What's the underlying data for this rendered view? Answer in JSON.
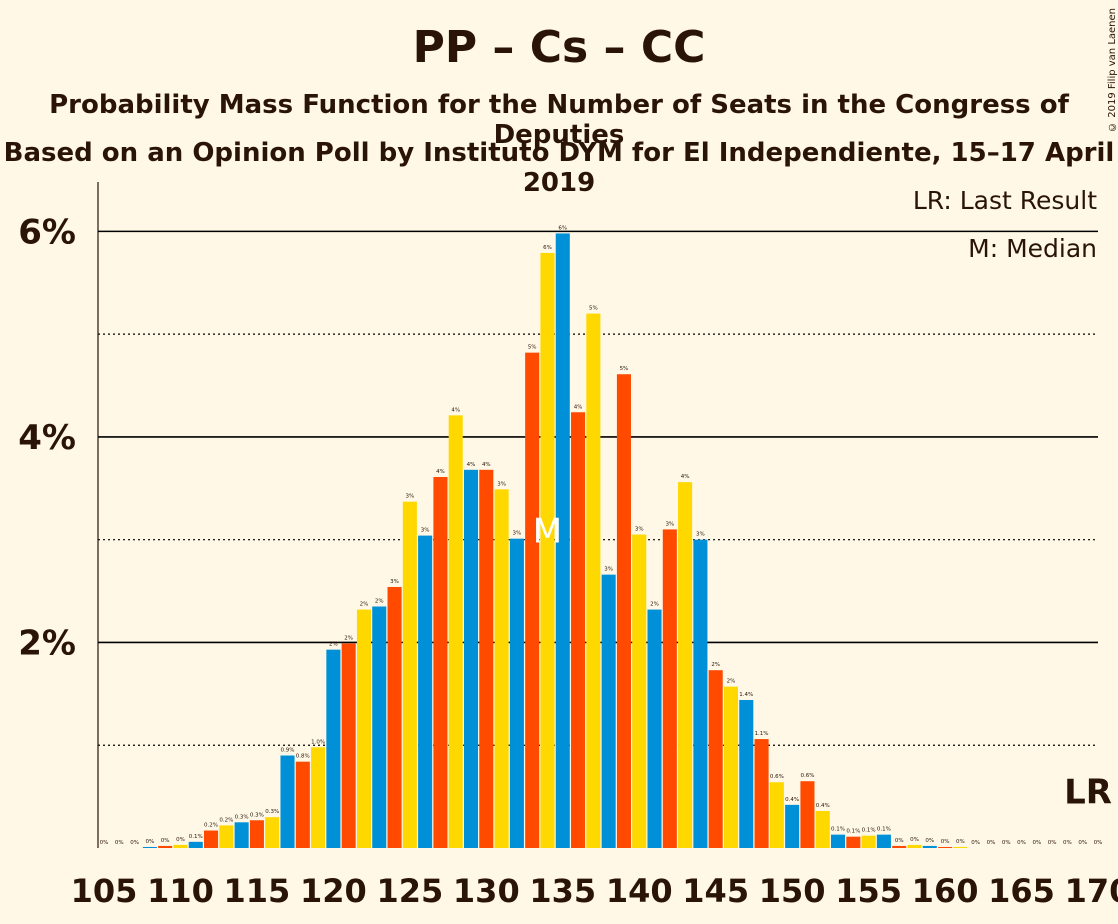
{
  "header": {
    "title": "PP – Cs – CC",
    "subtitle": "Probability Mass Function for the Number of Seats in the Congress of Deputies",
    "source": "Based on an Opinion Poll by Instituto DYM for El Independiente, 15–17 April 2019",
    "copyright": "© 2019 Filip van Laenen"
  },
  "legend": {
    "last_result": "LR: Last Result",
    "median": "M: Median"
  },
  "colors": {
    "background": "#fff8e6",
    "text": "#2a1408",
    "bar_palette": [
      "#0090d8",
      "#ff4a00",
      "#ffd800"
    ]
  },
  "chart_data": {
    "type": "bar",
    "x": [
      105,
      106,
      107,
      108,
      109,
      110,
      111,
      112,
      113,
      114,
      115,
      116,
      117,
      118,
      119,
      120,
      121,
      122,
      123,
      124,
      125,
      126,
      127,
      128,
      129,
      130,
      131,
      132,
      133,
      134,
      135,
      136,
      137,
      138,
      139,
      140,
      141,
      142,
      143,
      144,
      145,
      146,
      147,
      148,
      149,
      150,
      151,
      152,
      153,
      154,
      155,
      156,
      157,
      158,
      159,
      160,
      161,
      162,
      163,
      164,
      165,
      166,
      167,
      168,
      169,
      170
    ],
    "values": [
      0,
      0,
      0,
      0.01,
      0.02,
      0.03,
      0.06,
      0.17,
      0.22,
      0.25,
      0.27,
      0.3,
      0.9,
      0.84,
      0.98,
      1.93,
      1.99,
      2.32,
      2.35,
      2.54,
      3.37,
      3.04,
      3.61,
      4.21,
      3.68,
      3.68,
      3.49,
      3.01,
      4.82,
      5.79,
      5.98,
      4.24,
      5.2,
      2.66,
      4.61,
      3.05,
      2.32,
      3.1,
      3.56,
      3.0,
      1.73,
      1.57,
      1.44,
      1.06,
      0.64,
      0.42,
      0.65,
      0.36,
      0.13,
      0.11,
      0.12,
      0.13,
      0.02,
      0.03,
      0.02,
      0.01,
      0.01,
      0,
      0,
      0,
      0,
      0,
      0,
      0,
      0,
      0
    ],
    "data_labels": [
      "0%",
      "0%",
      "0%",
      "0%",
      "0%",
      "0%",
      "0.1%",
      "0.2%",
      "0.2%",
      "0.3%",
      "0.3%",
      "0.3%",
      "0.9%",
      "0.8%",
      "1.0%",
      "2%",
      "2%",
      "2%",
      "2%",
      "3%",
      "3%",
      "3%",
      "4%",
      "4%",
      "4%",
      "4%",
      "3%",
      "3%",
      "5%",
      "6%",
      "6%",
      "4%",
      "5%",
      "3%",
      "5%",
      "3%",
      "2%",
      "3%",
      "4%",
      "3%",
      "2%",
      "2%",
      "1.4%",
      "1.1%",
      "0.6%",
      "0.4%",
      "0.6%",
      "0.4%",
      "0.1%",
      "0.1%",
      "0.1%",
      "0.1%",
      "0%",
      "0%",
      "0%",
      "0%",
      "0%",
      "0%",
      "0%",
      "0%",
      "0%",
      "0%",
      "0%",
      "0%",
      "0%",
      "0%"
    ],
    "x_ticks": [
      "105",
      "110",
      "115",
      "120",
      "125",
      "130",
      "135",
      "140",
      "145",
      "150",
      "155",
      "160",
      "165",
      "170"
    ],
    "y_ticks": [
      "2%",
      "4%",
      "6%"
    ],
    "ylim": [
      0,
      6.5
    ],
    "median": 134,
    "median_label": "M",
    "last_result": 170,
    "last_result_label": "LR"
  }
}
